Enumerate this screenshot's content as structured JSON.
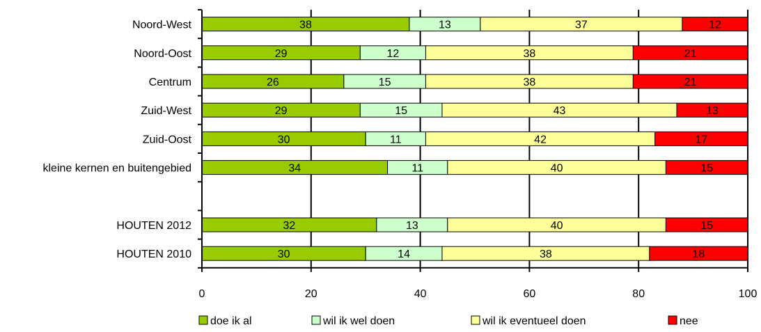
{
  "chart_data": {
    "type": "bar",
    "orientation": "horizontal",
    "stacked": true,
    "categories": [
      "Noord-West",
      "Noord-Oost",
      "Centrum",
      "Zuid-West",
      "Zuid-Oost",
      "kleine kernen en buitengebied",
      "",
      "HOUTEN 2012",
      "HOUTEN 2010"
    ],
    "series": [
      {
        "name": "doe ik al",
        "color": "#99cc00",
        "values": [
          38,
          29,
          26,
          29,
          30,
          34,
          null,
          32,
          30
        ]
      },
      {
        "name": "wil ik wel doen",
        "color": "#ccffcc",
        "values": [
          13,
          12,
          15,
          15,
          11,
          11,
          null,
          13,
          14
        ]
      },
      {
        "name": "wil ik eventueel doen",
        "color": "#ffff99",
        "values": [
          37,
          38,
          38,
          43,
          42,
          40,
          null,
          40,
          38
        ]
      },
      {
        "name": "nee",
        "color": "#ff0000",
        "values": [
          12,
          21,
          21,
          13,
          17,
          15,
          null,
          15,
          18
        ]
      }
    ],
    "xlim": [
      0,
      100
    ],
    "xticks": [
      0,
      20,
      40,
      60,
      80,
      100
    ],
    "grid": "vertical",
    "legend": "bottom",
    "title": "",
    "xlabel": "",
    "ylabel": ""
  }
}
